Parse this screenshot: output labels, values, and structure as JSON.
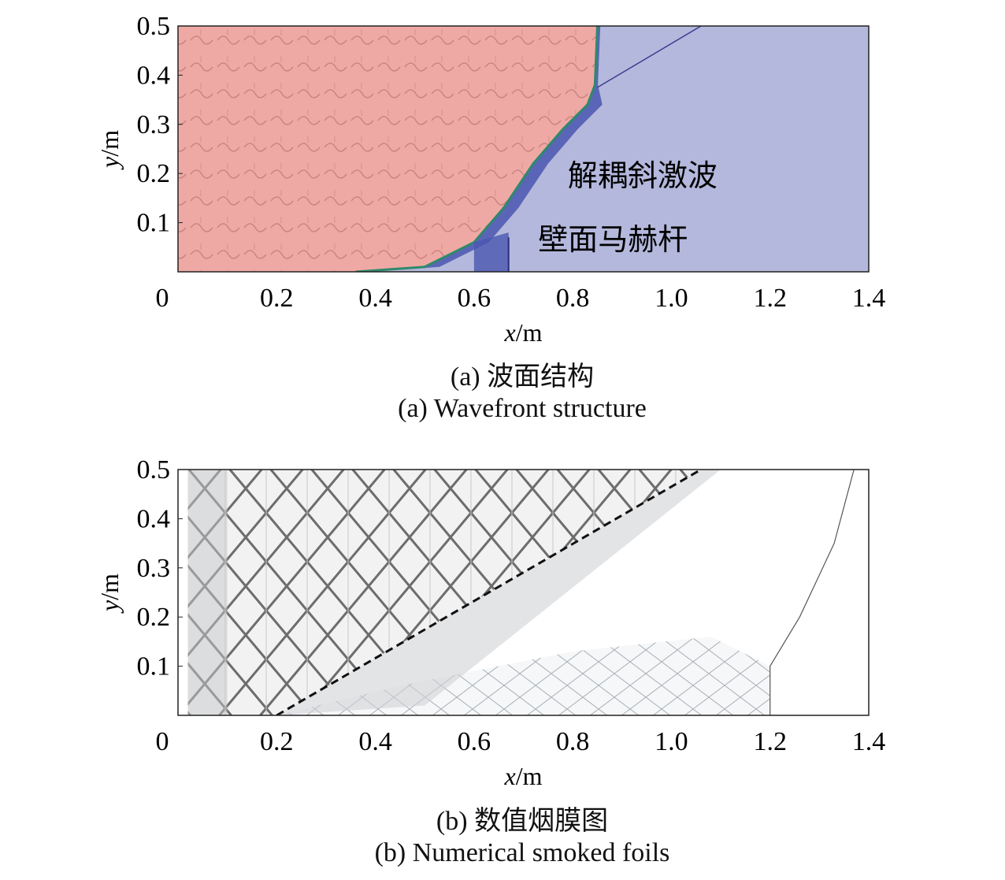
{
  "chart_data": [
    {
      "type": "heatmap",
      "title": "(a) 波面结构",
      "subtitle": "(a) Wavefront structure",
      "xlabel_var": "x",
      "xlabel_unit": "/m",
      "ylabel_var": "y",
      "ylabel_unit": "/m",
      "xlim": [
        0,
        1.4
      ],
      "ylim": [
        0,
        0.5
      ],
      "xticks": [
        "0",
        "0.2",
        "0.4",
        "0.6",
        "0.8",
        "1.0",
        "1.2",
        "1.4"
      ],
      "yticks": [
        "0.1",
        "0.2",
        "0.3",
        "0.4",
        "0.5"
      ],
      "annotations": [
        "解耦斜激波",
        "壁面马赫杆"
      ],
      "colors": {
        "burned": "#f0a8a4",
        "unburned": "#b4b8dc",
        "front": "#4a56b0"
      },
      "detonation_front": [
        [
          0.36,
          0
        ],
        [
          0.5,
          0.01
        ],
        [
          0.6,
          0.06
        ],
        [
          0.66,
          0.13
        ],
        [
          0.72,
          0.22
        ],
        [
          0.78,
          0.29
        ],
        [
          0.83,
          0.34
        ],
        [
          0.845,
          0.38
        ],
        [
          0.85,
          0.5
        ]
      ],
      "oblique_shock": [
        [
          0.85,
          0.375
        ],
        [
          1.06,
          0.5
        ]
      ],
      "mach_stem": [
        [
          0.67,
          0
        ],
        [
          0.67,
          0.07
        ]
      ]
    },
    {
      "type": "heatmap",
      "title": "(b) 数值烟膜图",
      "subtitle": "(b) Numerical smoked foils",
      "xlabel_var": "x",
      "xlabel_unit": "/m",
      "ylabel_var": "y",
      "ylabel_unit": "/m",
      "xlim": [
        0,
        1.4
      ],
      "ylim": [
        0,
        0.5
      ],
      "xticks": [
        "0",
        "0.2",
        "0.4",
        "0.6",
        "0.8",
        "1.0",
        "1.2",
        "1.4"
      ],
      "yticks": [
        "0.1",
        "0.2",
        "0.3",
        "0.4",
        "0.5"
      ],
      "dashed_line": [
        [
          0.2,
          0
        ],
        [
          1.06,
          0.5
        ]
      ],
      "front_arc": [
        [
          1.37,
          0.5
        ],
        [
          1.33,
          0.35
        ],
        [
          1.26,
          0.2
        ],
        [
          1.2,
          0.1
        ],
        [
          1.2,
          0
        ]
      ]
    }
  ]
}
